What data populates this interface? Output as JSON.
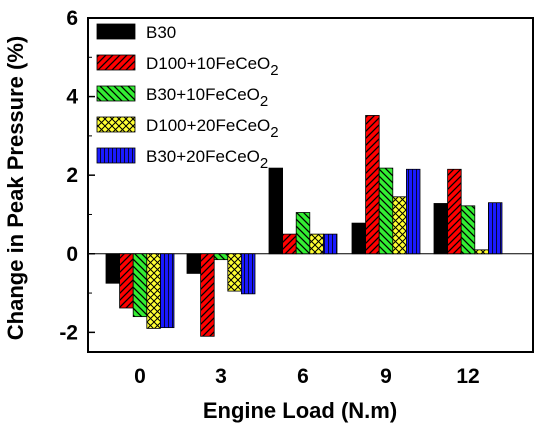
{
  "chart_data": {
    "type": "bar",
    "xlabel": "Engine Load (N.m)",
    "ylabel": "Change in Peak Pressure (%)",
    "categories": [
      "0",
      "3",
      "6",
      "9",
      "12"
    ],
    "ylim": [
      -2.5,
      6
    ],
    "yticks": [
      -2,
      0,
      2,
      4,
      6
    ],
    "grid": false,
    "legend_position": "top-left",
    "series": [
      {
        "name": "B30",
        "name_main": "B30",
        "name_sub": "",
        "color": "#000000",
        "pattern": "solid",
        "values": [
          -0.75,
          -0.5,
          2.18,
          0.78,
          1.28
        ]
      },
      {
        "name": "D100+10FeCeO2",
        "name_main": "D100+10FeCeO",
        "name_sub": "2",
        "color": "#ff0000",
        "pattern": "hatch-right",
        "values": [
          -1.38,
          -2.1,
          0.5,
          3.52,
          2.15
        ]
      },
      {
        "name": "B30+10FeCeO2",
        "name_main": "B30+10FeCeO",
        "name_sub": "2",
        "color": "#33ee33",
        "pattern": "hatch-left",
        "values": [
          -1.6,
          -0.15,
          1.05,
          2.18,
          1.22
        ]
      },
      {
        "name": "D100+20FeCeO2",
        "name_main": "D100+20FeCeO",
        "name_sub": "2",
        "color": "#ffff33",
        "pattern": "crosshatch",
        "values": [
          -1.9,
          -0.95,
          0.5,
          1.45,
          0.1
        ]
      },
      {
        "name": "B30+20FeCeO2",
        "name_main": "B30+20FeCeO",
        "name_sub": "2",
        "color": "#1a1aff",
        "pattern": "vertical",
        "values": [
          -1.88,
          -1.02,
          0.5,
          2.15,
          1.3
        ]
      }
    ]
  }
}
